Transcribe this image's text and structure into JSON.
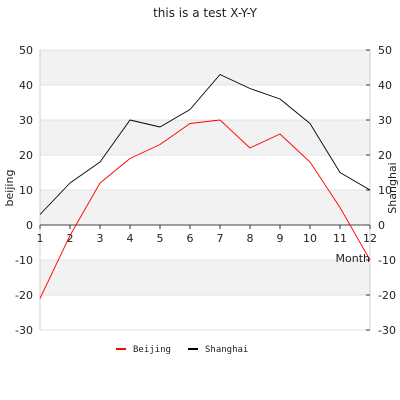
{
  "chart_data": {
    "type": "line",
    "title": "this is a test X-Y-Y",
    "xlabel": "Month",
    "ylabel_left": "beijing",
    "ylabel_right": "Shanghai",
    "x": [
      1,
      2,
      3,
      4,
      5,
      6,
      7,
      8,
      9,
      10,
      11,
      12
    ],
    "ylim": [
      -30,
      50
    ],
    "ylim_right": [
      -30,
      50
    ],
    "yticks": [
      -30,
      -20,
      -10,
      0,
      10,
      20,
      30,
      40,
      50
    ],
    "grid": "alternating horizontal bands",
    "legend": "bottom",
    "series": [
      {
        "name": "Beijing",
        "axis": "left",
        "color": "#ff0000",
        "values": [
          -21,
          -3,
          12,
          19,
          23,
          29,
          30,
          22,
          26,
          18,
          5,
          -10
        ]
      },
      {
        "name": "Shanghai",
        "axis": "right",
        "color": "#000000",
        "values": [
          3,
          12,
          18,
          30,
          28,
          33,
          43,
          39,
          36,
          29,
          15,
          10
        ]
      }
    ]
  }
}
